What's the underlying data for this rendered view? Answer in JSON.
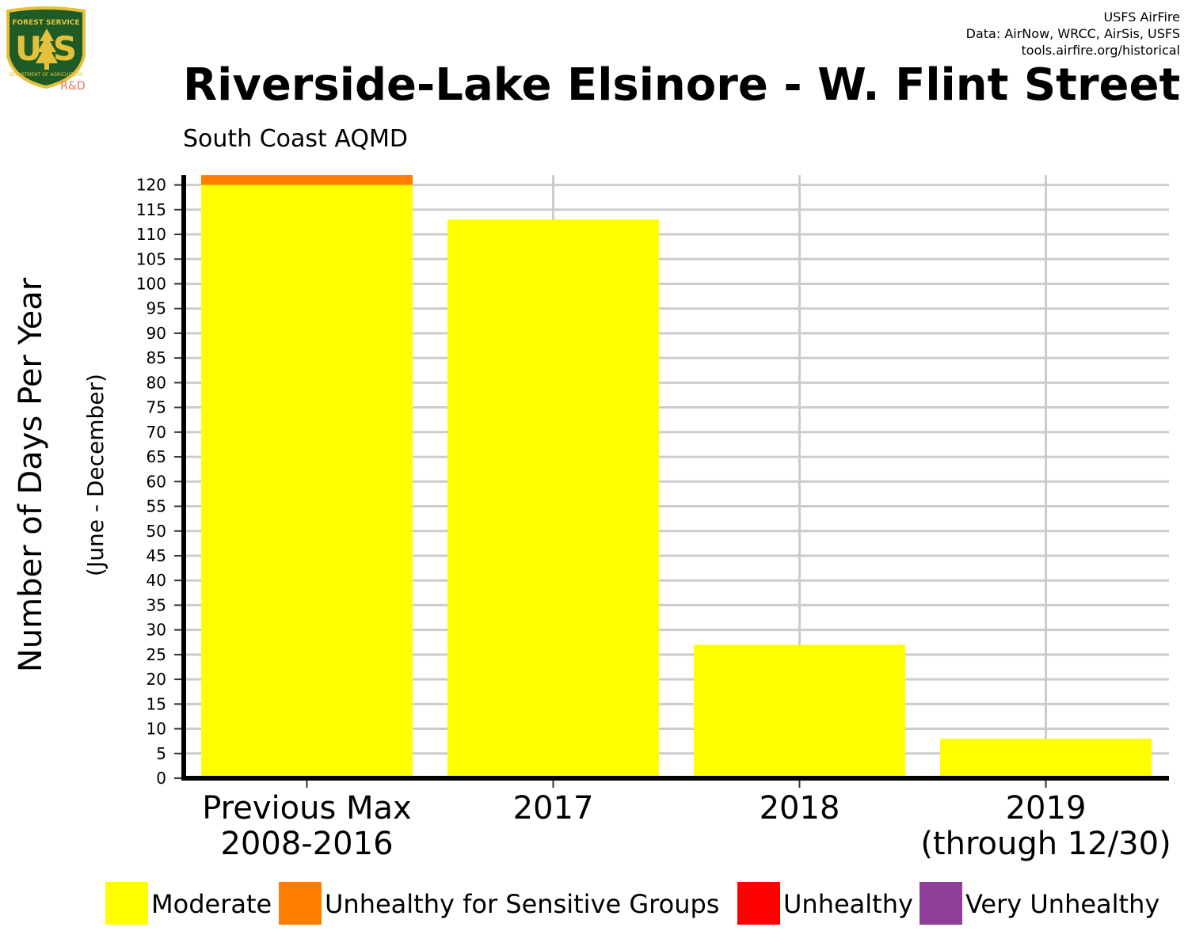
{
  "logo": {
    "top_text": "FOREST SERVICE",
    "letters_left": "U",
    "letters_right": "S",
    "bottom_text": "DEPARTMENT OF AGRICULTURE",
    "rd_label": "R&D",
    "shield_color": "#1e5b26",
    "border_color": "#e3c13a"
  },
  "credits": {
    "line1": "USFS AirFire",
    "line2": "Data: AirNow, WRCC, AirSis, USFS",
    "line3": "tools.airfire.org/historical"
  },
  "chart_data": {
    "type": "bar",
    "stacked": true,
    "title": "Riverside-Lake Elsinore - W. Flint Street",
    "subtitle": "South Coast AQMD",
    "ylabel": "Number of Days Per Year",
    "ylabel_sub": "(June - December)",
    "xlabel": "",
    "ylim": [
      0,
      122
    ],
    "y_ticks": [
      0,
      5,
      10,
      15,
      20,
      25,
      30,
      35,
      40,
      45,
      50,
      55,
      60,
      65,
      70,
      75,
      80,
      85,
      90,
      95,
      100,
      105,
      110,
      115,
      120
    ],
    "grid": true,
    "legend_position": "bottom",
    "categories": [
      {
        "line1": "Previous Max",
        "line2": "2008-2016"
      },
      {
        "line1": "2017",
        "line2": ""
      },
      {
        "line1": "2018",
        "line2": ""
      },
      {
        "line1": "2019",
        "line2": "(through 12/30)"
      }
    ],
    "series": [
      {
        "name": "Moderate",
        "color": "#ffff00",
        "values": [
          120,
          113,
          27,
          8
        ]
      },
      {
        "name": "Unhealthy for Sensitive Groups",
        "color": "#ff7e00",
        "values": [
          2,
          0,
          0,
          0
        ]
      },
      {
        "name": "Unhealthy",
        "color": "#ff0000",
        "values": [
          0,
          0,
          0,
          0
        ]
      },
      {
        "name": "Very Unhealthy",
        "color": "#8f3f97",
        "values": [
          0,
          0,
          0,
          0
        ]
      }
    ]
  }
}
